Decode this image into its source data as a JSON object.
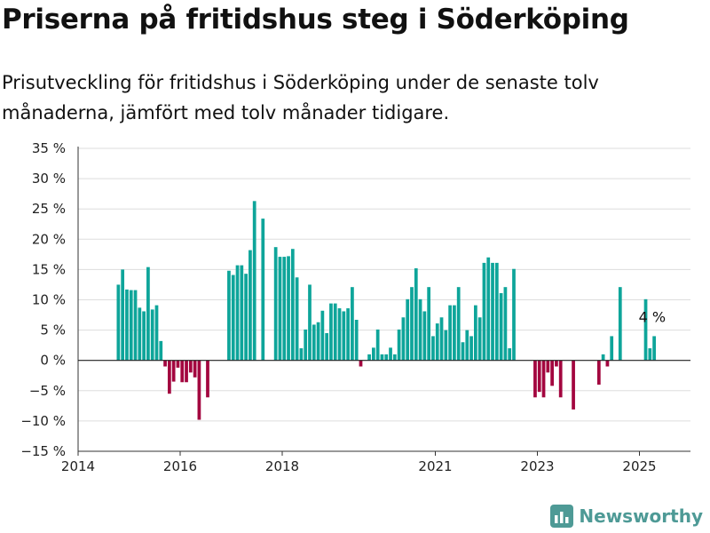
{
  "header": {
    "title": "Priserna på fritidshus steg i Söderköping",
    "subtitle": "Prisutveckling för fritidshus i Söderköping under de senaste tolv månaderna, jämfört med tolv månader tidigare."
  },
  "brand": {
    "name": "Newsworthy",
    "icon": "newsworthy-logo-icon",
    "color": "#4e9a96"
  },
  "colors": {
    "positive": "#0ea59a",
    "negative": "#a3063f",
    "grid": "#dddddd",
    "zero_line": "#222222"
  },
  "chart_data": {
    "type": "bar",
    "ylim": [
      -15,
      35
    ],
    "yticks": [
      -15,
      -10,
      -5,
      0,
      5,
      10,
      15,
      20,
      25,
      30,
      35
    ],
    "ytick_labels": [
      "−15 %",
      "−10 %",
      "−5 %",
      "0 %",
      "5 %",
      "10 %",
      "15 %",
      "20 %",
      "25 %",
      "30 %",
      "35 %"
    ],
    "xlim": [
      "2014-01",
      "2026-01"
    ],
    "xticks": [
      "2014-01",
      "2016-01",
      "2018-01",
      "2021-01",
      "2023-01",
      "2025-01"
    ],
    "xtick_labels": [
      "2014",
      "2016",
      "2018",
      "2021",
      "2023",
      "2025"
    ],
    "series": [
      {
        "values": [
          [
            "2014-10",
            12.5
          ],
          [
            "2014-11",
            15
          ],
          [
            "2014-12",
            11.7
          ],
          [
            "2015-01",
            11.6
          ],
          [
            "2015-02",
            11.6
          ],
          [
            "2015-03",
            8.7
          ],
          [
            "2015-04",
            8.1
          ],
          [
            "2015-05",
            15.4
          ],
          [
            "2015-06",
            8.4
          ],
          [
            "2015-07",
            9.1
          ],
          [
            "2015-08",
            3.2
          ],
          [
            "2015-09",
            -1
          ],
          [
            "2015-10",
            -5.5
          ],
          [
            "2015-11",
            -3.5
          ],
          [
            "2015-12",
            -1.2
          ],
          [
            "2016-01",
            -3.6
          ],
          [
            "2016-02",
            -3.6
          ],
          [
            "2016-03",
            -2
          ],
          [
            "2016-04",
            -2.8
          ],
          [
            "2016-05",
            -9.8
          ],
          [
            "2016-07",
            -6.1
          ],
          [
            "2016-12",
            14.8
          ],
          [
            "2017-01",
            14.1
          ],
          [
            "2017-02",
            15.7
          ],
          [
            "2017-03",
            15.7
          ],
          [
            "2017-04",
            14.3
          ],
          [
            "2017-05",
            18.2
          ],
          [
            "2017-06",
            26.3
          ],
          [
            "2017-08",
            23.4
          ],
          [
            "2017-11",
            18.7
          ],
          [
            "2017-12",
            17.1
          ],
          [
            "2018-01",
            17.1
          ],
          [
            "2018-02",
            17.2
          ],
          [
            "2018-03",
            18.4
          ],
          [
            "2018-04",
            13.7
          ],
          [
            "2018-05",
            2
          ],
          [
            "2018-06",
            5.1
          ],
          [
            "2018-07",
            12.5
          ],
          [
            "2018-08",
            5.9
          ],
          [
            "2018-09",
            6.3
          ],
          [
            "2018-10",
            8.2
          ],
          [
            "2018-11",
            4.5
          ],
          [
            "2018-12",
            9.4
          ],
          [
            "2019-01",
            9.4
          ],
          [
            "2019-02",
            8.6
          ],
          [
            "2019-03",
            8.1
          ],
          [
            "2019-04",
            8.6
          ],
          [
            "2019-05",
            12.1
          ],
          [
            "2019-06",
            6.7
          ],
          [
            "2019-07",
            -1
          ],
          [
            "2019-09",
            1
          ],
          [
            "2019-10",
            2.1
          ],
          [
            "2019-11",
            5.1
          ],
          [
            "2019-12",
            1
          ],
          [
            "2020-01",
            1
          ],
          [
            "2020-02",
            2.1
          ],
          [
            "2020-03",
            1
          ],
          [
            "2020-04",
            5.1
          ],
          [
            "2020-05",
            7.1
          ],
          [
            "2020-06",
            10.1
          ],
          [
            "2020-07",
            12.1
          ],
          [
            "2020-08",
            15.2
          ],
          [
            "2020-09",
            10.1
          ],
          [
            "2020-10",
            8.1
          ],
          [
            "2020-11",
            12.1
          ],
          [
            "2020-12",
            4
          ],
          [
            "2021-01",
            6.1
          ],
          [
            "2021-02",
            7.1
          ],
          [
            "2021-03",
            5
          ],
          [
            "2021-04",
            9.1
          ],
          [
            "2021-05",
            9.1
          ],
          [
            "2021-06",
            12.1
          ],
          [
            "2021-07",
            3
          ],
          [
            "2021-08",
            5
          ],
          [
            "2021-09",
            4
          ],
          [
            "2021-10",
            9.1
          ],
          [
            "2021-11",
            7.1
          ],
          [
            "2021-12",
            16.1
          ],
          [
            "2022-01",
            17
          ],
          [
            "2022-02",
            16.1
          ],
          [
            "2022-03",
            16.1
          ],
          [
            "2022-04",
            11.1
          ],
          [
            "2022-05",
            12.1
          ],
          [
            "2022-06",
            2
          ],
          [
            "2022-07",
            15.1
          ],
          [
            "2022-12",
            -6.1
          ],
          [
            "2023-01",
            -5.2
          ],
          [
            "2023-02",
            -6.1
          ],
          [
            "2023-03",
            -2
          ],
          [
            "2023-04",
            -4.2
          ],
          [
            "2023-05",
            -1
          ],
          [
            "2023-06",
            -6.1
          ],
          [
            "2023-09",
            -8.1
          ],
          [
            "2024-03",
            -4
          ],
          [
            "2024-04",
            1
          ],
          [
            "2024-05",
            -1
          ],
          [
            "2024-06",
            4
          ],
          [
            "2024-08",
            12.1
          ],
          [
            "2025-02",
            10.1
          ],
          [
            "2025-03",
            2
          ],
          [
            "2025-04",
            4
          ]
        ]
      }
    ],
    "annotations": [
      {
        "x": "2025-04",
        "y": 4,
        "text": "4 %"
      }
    ]
  }
}
